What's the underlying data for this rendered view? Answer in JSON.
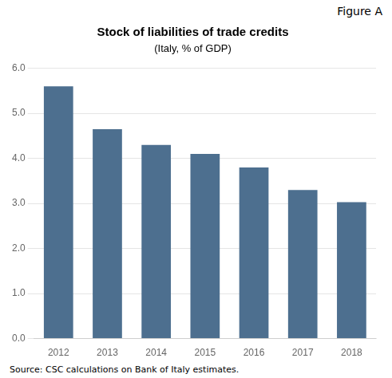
{
  "chart_data": {
    "type": "bar",
    "title": "Stock of liabilities of trade credits",
    "subtitle": "(Italy, % of GDP)",
    "annotations": [
      "Figure A",
      "Source: CSC calculations on Bank of Italy estimates."
    ],
    "categories": [
      "2012",
      "2013",
      "2014",
      "2015",
      "2016",
      "2017",
      "2018"
    ],
    "values": [
      5.6,
      4.65,
      4.3,
      4.1,
      3.8,
      3.3,
      3.03
    ],
    "color": "#4d6f8f",
    "ylim": [
      0,
      6.0
    ],
    "yticks": [
      {
        "value": 0,
        "label": "0.0"
      },
      {
        "value": 1,
        "label": "1.0"
      },
      {
        "value": 2,
        "label": "2.0"
      },
      {
        "value": 3,
        "label": "3.0"
      },
      {
        "value": 4,
        "label": "4.0"
      },
      {
        "value": 5,
        "label": "5.0"
      },
      {
        "value": 6,
        "label": "6.0"
      }
    ],
    "grid": true
  }
}
